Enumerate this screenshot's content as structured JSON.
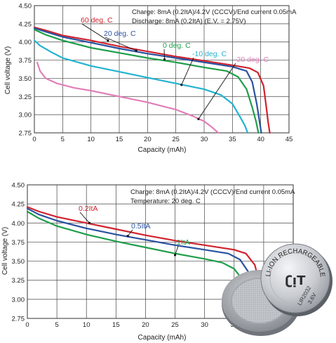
{
  "chart_data": [
    {
      "type": "line",
      "xlabel": "Capacity (mAh)",
      "ylabel": "Cell voltage (V)",
      "xlim": [
        0,
        45
      ],
      "ylim": [
        2.75,
        4.5
      ],
      "xticks": [
        "0",
        "5",
        "10",
        "15",
        "20",
        "25",
        "30",
        "35",
        "40",
        "45"
      ],
      "yticks": [
        "2.75",
        "3.00",
        "3.25",
        "3.50",
        "3.75",
        "4.00",
        "4.25",
        "4.50"
      ],
      "grid": true,
      "annotations": [
        "Charge:  8mA (0.2ItA)/4.2V (CCCV)/End current 0.05mA",
        "Discharge:  8mA (0.2ItA) (E.V. = 2.75V)"
      ],
      "series": [
        {
          "name": "60 deg. C",
          "color": "#d0222e",
          "x": [
            0,
            2,
            5,
            10,
            15,
            20,
            25,
            30,
            35,
            38,
            39.5,
            40.5,
            41,
            41.3,
            41.6
          ],
          "y": [
            4.2,
            4.16,
            4.09,
            4.02,
            3.94,
            3.87,
            3.8,
            3.74,
            3.68,
            3.64,
            3.58,
            3.4,
            3.1,
            2.9,
            2.75
          ]
        },
        {
          "name": "20 deg. C",
          "color": "#2a52a0",
          "x": [
            0,
            2,
            5,
            10,
            15,
            20,
            25,
            30,
            35,
            37.5,
            38.5,
            39.3,
            39.8,
            40.1
          ],
          "y": [
            4.19,
            4.14,
            4.07,
            3.99,
            3.91,
            3.84,
            3.78,
            3.72,
            3.66,
            3.6,
            3.45,
            3.15,
            2.9,
            2.75
          ]
        },
        {
          "name": "0 deg. C",
          "color": "#1f9e4a",
          "x": [
            0,
            2,
            5,
            10,
            15,
            20,
            25,
            30,
            34,
            36,
            37.5,
            38.5,
            39.2,
            39.6
          ],
          "y": [
            4.17,
            4.1,
            4.02,
            3.92,
            3.85,
            3.78,
            3.72,
            3.65,
            3.6,
            3.52,
            3.35,
            3.1,
            2.9,
            2.75
          ]
        },
        {
          "name": "-10 deg. C",
          "color": "#22b3d0",
          "x": [
            0,
            1,
            3,
            5,
            10,
            15,
            20,
            25,
            30,
            33,
            35,
            36.5,
            37.2,
            37.7
          ],
          "y": [
            4.02,
            3.95,
            3.86,
            3.78,
            3.67,
            3.59,
            3.51,
            3.43,
            3.35,
            3.27,
            3.15,
            2.95,
            2.85,
            2.75
          ]
        },
        {
          "name": "-20 deg. C",
          "color": "#e07fb8",
          "x": [
            0.5,
            1,
            2,
            4,
            7,
            10,
            15,
            20,
            25,
            28,
            30,
            31.5,
            32.5
          ],
          "y": [
            3.72,
            3.6,
            3.5,
            3.43,
            3.37,
            3.33,
            3.25,
            3.17,
            3.07,
            2.98,
            2.91,
            2.82,
            2.75
          ]
        }
      ],
      "labels": [
        "60 deg. C",
        "20 deg. C",
        "0 deg. C",
        "-10 deg. C",
        "-20 deg. C"
      ]
    },
    {
      "type": "line",
      "xlabel": "Capacity (mAh)",
      "ylabel": "Cell voltage (V)",
      "xlim": [
        0,
        45
      ],
      "ylim": [
        2.75,
        4.5
      ],
      "xticks": [
        "0",
        "5",
        "10",
        "15",
        "20",
        "25",
        "30",
        "35"
      ],
      "yticks": [
        "2.75",
        "3.00",
        "3.25",
        "3.50",
        "3.75",
        "4.00",
        "4.25",
        "4.50"
      ],
      "grid": true,
      "annotations": [
        "Charge:  8mA (0.2ItA)/4.2V (CCCV)/End current 0.05mA",
        "Temperature: 20 deg. C"
      ],
      "series": [
        {
          "name": "0.2ItA",
          "color": "#d0222e",
          "x": [
            0,
            2,
            5,
            10,
            15,
            20,
            25,
            30,
            35,
            37,
            38.5,
            39.5,
            40.3
          ],
          "y": [
            4.21,
            4.15,
            4.08,
            4.0,
            3.92,
            3.84,
            3.77,
            3.71,
            3.65,
            3.6,
            3.45,
            3.15,
            2.95
          ]
        },
        {
          "name": "0.5ItA",
          "color": "#2a52a0",
          "x": [
            0,
            2,
            5,
            10,
            15,
            20,
            25,
            30,
            34,
            36,
            37.5,
            38.5,
            39.2
          ],
          "y": [
            4.19,
            4.11,
            4.03,
            3.93,
            3.85,
            3.78,
            3.71,
            3.65,
            3.6,
            3.52,
            3.35,
            3.1,
            2.95
          ]
        },
        {
          "name": "1ItA",
          "color": "#1f9e4a",
          "x": [
            0,
            2,
            5,
            10,
            15,
            20,
            25,
            30,
            33,
            35,
            36.5,
            37.5,
            38.2
          ],
          "y": [
            4.15,
            4.06,
            3.96,
            3.85,
            3.76,
            3.68,
            3.6,
            3.53,
            3.48,
            3.4,
            3.25,
            3.05,
            2.95
          ]
        }
      ],
      "labels": [
        "0.2ItA",
        "0.5ItA",
        "1ItA"
      ]
    }
  ],
  "coin_cell": {
    "brand": "ʗᴉT",
    "ring_text": "LI-ION RECHARGEABLE BATTERY",
    "model": "LIR2032",
    "voltage": "3.6V"
  }
}
